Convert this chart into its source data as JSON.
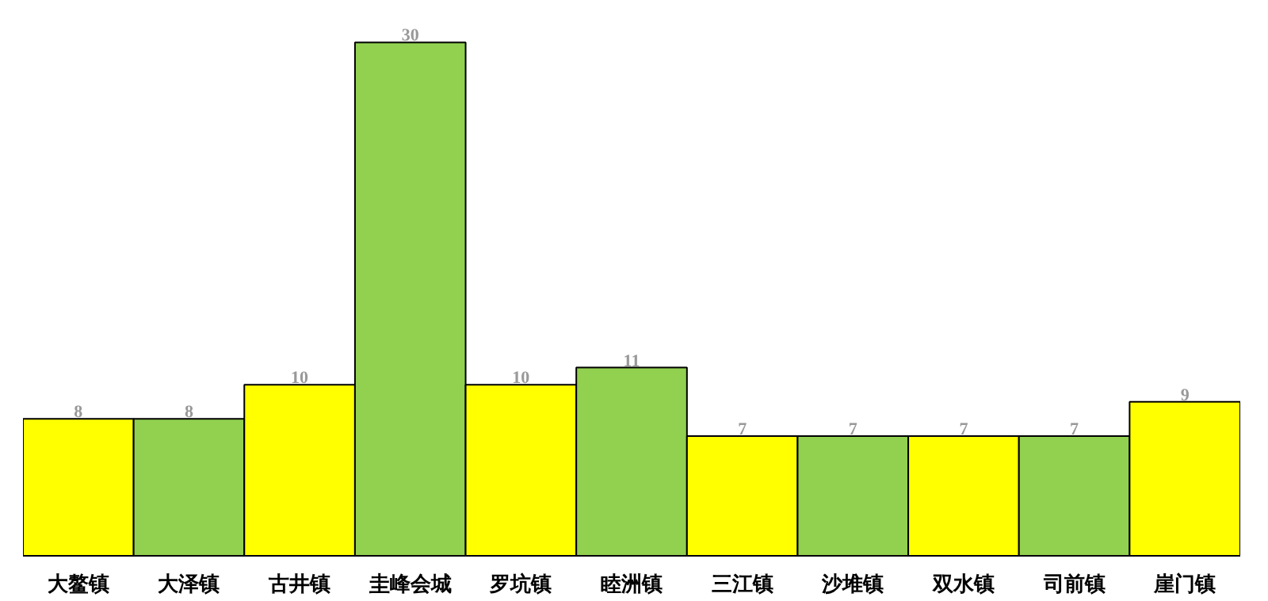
{
  "chart_data": {
    "type": "bar",
    "categories": [
      "大鳌镇",
      "大泽镇",
      "古井镇",
      "圭峰会城",
      "罗坑镇",
      "睦洲镇",
      "三江镇",
      "沙堆镇",
      "双水镇",
      "司前镇",
      "崖门镇"
    ],
    "values": [
      8,
      8,
      10,
      30,
      10,
      11,
      7,
      7,
      7,
      7,
      9
    ],
    "colors": [
      "#ffff00",
      "#92d050",
      "#ffff00",
      "#92d050",
      "#ffff00",
      "#92d050",
      "#ffff00",
      "#92d050",
      "#ffff00",
      "#92d050",
      "#ffff00"
    ],
    "data_labels": true,
    "grid": false,
    "tick_labels": "x"
  }
}
